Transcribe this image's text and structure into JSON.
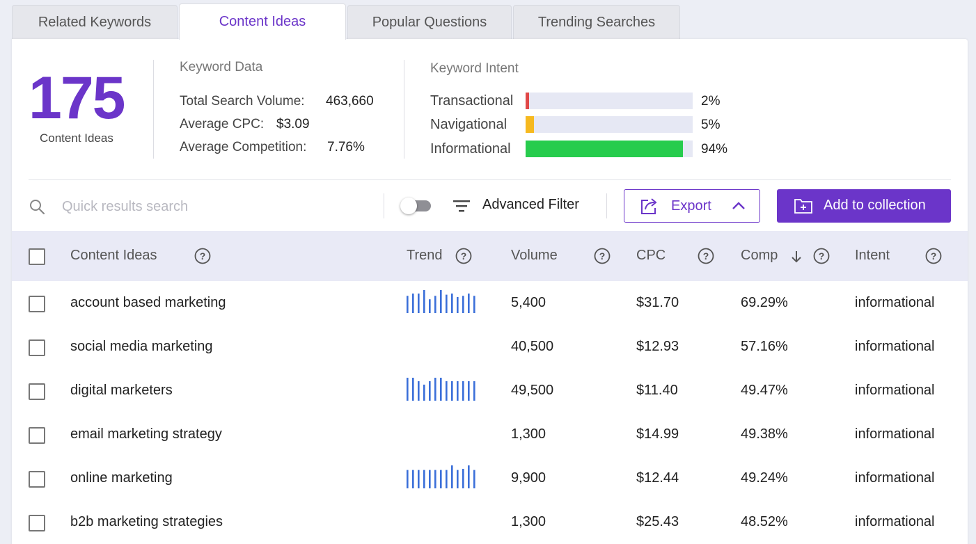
{
  "tabs": [
    {
      "label": "Related Keywords"
    },
    {
      "label": "Content Ideas"
    },
    {
      "label": "Popular Questions"
    },
    {
      "label": "Trending Searches"
    }
  ],
  "summary": {
    "count": "175",
    "count_label": "Content Ideas",
    "keyword_data": {
      "title": "Keyword Data",
      "total_volume_label": "Total Search Volume:",
      "total_volume": "463,660",
      "avg_cpc_label": "Average CPC:",
      "avg_cpc": "$3.09",
      "avg_comp_label": "Average Competition:",
      "avg_comp": "7.76%"
    },
    "intent": {
      "title": "Keyword Intent",
      "items": [
        {
          "label": "Transactional",
          "pct": "2%",
          "fraction": 0.02,
          "color": "#e04848"
        },
        {
          "label": "Navigational",
          "pct": "5%",
          "fraction": 0.05,
          "color": "#f6b91f"
        },
        {
          "label": "Informational",
          "pct": "94%",
          "fraction": 0.94,
          "color": "#27cc4d"
        }
      ],
      "track_color": "#e6e8f4"
    }
  },
  "toolbar": {
    "search_placeholder": "Quick results search",
    "advanced_filter_label": "Advanced Filter",
    "export_label": "Export",
    "add_collection_label": "Add to collection"
  },
  "table": {
    "headers": {
      "content_ideas": "Content Ideas",
      "trend": "Trend",
      "volume": "Volume",
      "cpc": "CPC",
      "comp": "Comp",
      "intent": "Intent"
    },
    "rows": [
      {
        "keyword": "account based marketing",
        "volume": "5,400",
        "cpc": "$31.70",
        "comp": "69.29%",
        "intent": "informational",
        "trend": [
          0.75,
          0.85,
          0.85,
          1.0,
          0.6,
          0.75,
          1.0,
          0.8,
          0.85,
          0.7,
          0.75,
          0.85,
          0.75
        ]
      },
      {
        "keyword": "social media marketing",
        "volume": "40,500",
        "cpc": "$12.93",
        "comp": "57.16%",
        "intent": "informational",
        "trend": []
      },
      {
        "keyword": "digital marketers",
        "volume": "49,500",
        "cpc": "$11.40",
        "comp": "49.47%",
        "intent": "informational",
        "trend": [
          1.0,
          1.0,
          0.85,
          0.7,
          0.85,
          1.0,
          1.0,
          0.85,
          0.85,
          0.85,
          0.85,
          0.85,
          0.85
        ]
      },
      {
        "keyword": "email marketing strategy",
        "volume": "1,300",
        "cpc": "$14.99",
        "comp": "49.38%",
        "intent": "informational",
        "trend": []
      },
      {
        "keyword": "online marketing",
        "volume": "9,900",
        "cpc": "$12.44",
        "comp": "49.24%",
        "intent": "informational",
        "trend": [
          0.8,
          0.8,
          0.8,
          0.8,
          0.8,
          0.8,
          0.8,
          0.8,
          1.0,
          0.8,
          0.85,
          1.0,
          0.8
        ]
      },
      {
        "keyword": "b2b marketing strategies",
        "volume": "1,300",
        "cpc": "$25.43",
        "comp": "48.52%",
        "intent": "informational",
        "trend": []
      }
    ]
  }
}
